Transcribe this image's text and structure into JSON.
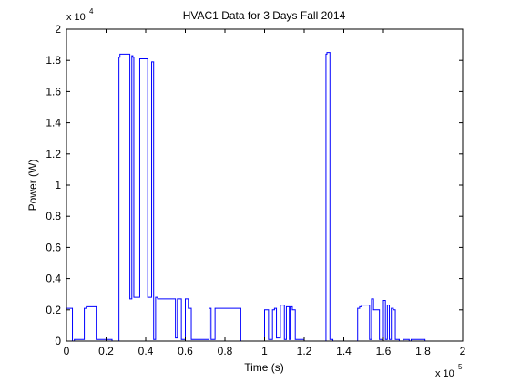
{
  "chart_data": {
    "type": "line",
    "title": "HVAC1 Data for 3 Days Fall 2014",
    "xlabel": "Time (s)",
    "ylabel": "Power (W)",
    "x_multiplier": {
      "base": "x 10",
      "exponent": "5"
    },
    "y_multiplier": {
      "base": "x 10",
      "exponent": "4"
    },
    "xlim": [
      0,
      2
    ],
    "ylim": [
      0,
      2
    ],
    "x_ticks": [
      "0",
      "0.2",
      "0.4",
      "0.6",
      "0.8",
      "1",
      "1.2",
      "1.4",
      "1.6",
      "1.8",
      "2"
    ],
    "y_ticks": [
      "0",
      "0.2",
      "0.4",
      "0.6",
      "0.8",
      "1",
      "1.2",
      "1.4",
      "1.6",
      "1.8",
      "2"
    ],
    "grid": false,
    "line_color": "#0000ff",
    "series": [
      {
        "x": [
          0.0,
          0.0,
          0.03,
          0.03,
          0.04,
          0.04,
          0.09,
          0.09,
          0.1,
          0.1,
          0.15,
          0.15,
          0.23,
          0.23,
          0.265,
          0.265,
          0.27,
          0.27,
          0.32,
          0.32,
          0.33,
          0.33,
          0.335,
          0.335,
          0.34,
          0.34,
          0.37,
          0.37,
          0.41,
          0.41,
          0.43,
          0.43,
          0.44,
          0.44,
          0.45,
          0.45,
          0.46,
          0.46,
          0.55,
          0.55,
          0.56,
          0.56,
          0.58,
          0.58,
          0.6,
          0.6,
          0.615,
          0.615,
          0.63,
          0.63,
          0.72,
          0.72,
          0.73,
          0.73,
          0.75,
          0.75,
          0.88,
          0.88,
          1.0,
          1.0,
          1.02,
          1.02,
          1.04,
          1.04,
          1.05,
          1.05,
          1.06,
          1.06,
          1.08,
          1.08,
          1.1,
          1.1,
          1.11,
          1.11,
          1.125,
          1.125,
          1.13,
          1.13,
          1.14,
          1.14,
          1.155,
          1.155,
          1.2,
          1.2,
          1.31,
          1.31,
          1.315,
          1.315,
          1.33,
          1.33,
          1.345,
          1.345,
          1.47,
          1.47,
          1.48,
          1.48,
          1.49,
          1.49,
          1.53,
          1.53,
          1.54,
          1.54,
          1.55,
          1.55,
          1.58,
          1.58,
          1.6,
          1.6,
          1.61,
          1.61,
          1.62,
          1.62,
          1.63,
          1.63,
          1.64,
          1.64,
          1.65,
          1.65,
          1.66,
          1.66,
          1.68,
          1.68,
          1.7,
          1.7,
          1.73,
          1.73,
          1.74,
          1.74,
          1.81,
          1.81
        ],
        "y": [
          0.02,
          0.21,
          0.21,
          0.0,
          0.0,
          0.01,
          0.01,
          0.21,
          0.21,
          0.22,
          0.22,
          0.01,
          0.01,
          0.0,
          0.0,
          1.82,
          1.82,
          1.84,
          1.84,
          0.27,
          0.27,
          1.83,
          1.83,
          1.82,
          1.82,
          0.28,
          0.28,
          1.81,
          1.81,
          0.28,
          0.28,
          1.79,
          1.79,
          0.01,
          0.01,
          0.28,
          0.28,
          0.27,
          0.27,
          0.02,
          0.02,
          0.27,
          0.27,
          0.01,
          0.01,
          0.27,
          0.27,
          0.21,
          0.21,
          0.01,
          0.01,
          0.21,
          0.21,
          0.01,
          0.01,
          0.21,
          0.21,
          0.0,
          0.0,
          0.2,
          0.2,
          0.01,
          0.01,
          0.2,
          0.2,
          0.21,
          0.21,
          0.02,
          0.02,
          0.23,
          0.23,
          0.01,
          0.01,
          0.22,
          0.22,
          0.01,
          0.01,
          0.22,
          0.22,
          0.2,
          0.2,
          0.01,
          0.01,
          0.0,
          0.0,
          1.84,
          1.84,
          1.85,
          1.85,
          0.01,
          0.01,
          0.0,
          0.0,
          0.21,
          0.21,
          0.22,
          0.22,
          0.23,
          0.23,
          0.01,
          0.01,
          0.27,
          0.27,
          0.2,
          0.2,
          0.01,
          0.01,
          0.26,
          0.26,
          0.01,
          0.01,
          0.23,
          0.23,
          0.01,
          0.01,
          0.21,
          0.21,
          0.2,
          0.2,
          0.01,
          0.01,
          0.0,
          0.0,
          0.01,
          0.01,
          0.0,
          0.0,
          0.01,
          0.01,
          0.0
        ]
      }
    ]
  }
}
